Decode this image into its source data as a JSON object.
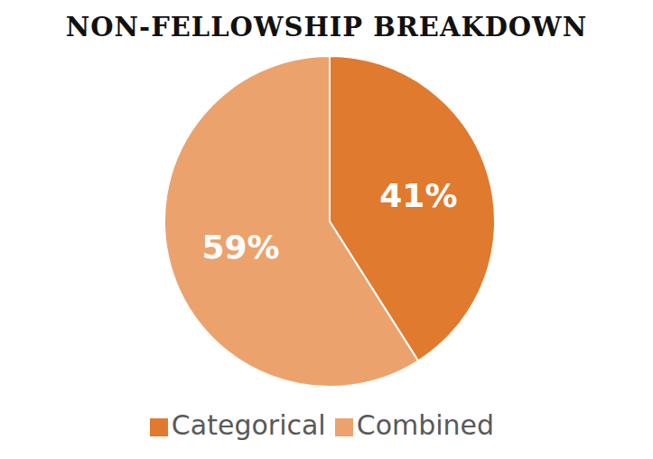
{
  "chart_data": {
    "type": "pie",
    "title": "NON-FELLOWSHIP BREAKDOWN",
    "categories": [
      "Categorical",
      "Combined"
    ],
    "values": [
      41,
      59
    ],
    "value_labels": [
      "41%",
      "59%"
    ],
    "colors": [
      "#e07a2f",
      "#eca26d"
    ],
    "data_labels": true,
    "legend": "bottom"
  }
}
